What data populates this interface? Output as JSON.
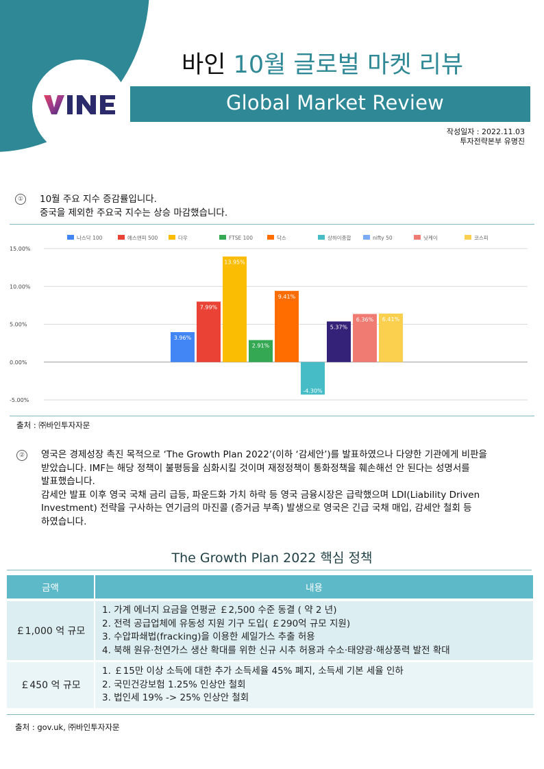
{
  "header": {
    "title_prefix": "바인",
    "title_accent": "10월 글로벌 마켓 리뷰",
    "subtitle": "Global Market Review",
    "logo_text": "VINE",
    "date_line": "작성일자 : 2022.11.03",
    "author_line": "투자전략본부  유명진"
  },
  "section1": {
    "marker": "①",
    "line1": "10월 주요 지수 증감률입니다.",
    "line2": "중국을 제외한 주요국 지수는 상승 마감했습니다.",
    "source": "출처 : ㈜바인투자자문"
  },
  "chart_data": {
    "type": "bar",
    "categories": [
      "나스닥 100",
      "에스앤피 500",
      "다우",
      "FTSE 100",
      "닥스",
      "상하이종합",
      "nifty 50",
      "닛케이",
      "코스피"
    ],
    "values": [
      3.96,
      7.99,
      13.95,
      2.91,
      9.41,
      -4.3,
      5.37,
      6.36,
      6.41
    ],
    "data_labels": [
      "3.96%",
      "7.99%",
      "13.95%",
      "2.91%",
      "9.41%",
      "-4.30%",
      "5.37%",
      "6.36%",
      "6.41%"
    ],
    "colors": [
      "#4285f4",
      "#ea4335",
      "#fbbc04",
      "#34a853",
      "#ff6d01",
      "#46bdc6",
      "#7baaf7",
      "#f07b72",
      "#fcd04f"
    ],
    "bar_fill_overrides": {
      "nifty 50": "#332277"
    },
    "yticks": [
      "15.00%",
      "10.00%",
      "5.00%",
      "0.00%",
      "-5.00%"
    ],
    "ylim": [
      -5,
      15
    ],
    "grid": true,
    "legend": "top"
  },
  "section2": {
    "marker": "②",
    "lines": [
      "영국은 경제성장 촉진 목적으로 ‘The Growth Plan 2022’(이하  ‘감세안’)를 발표하였으나 다양한 기관에게 비판을",
      "받았습니다. IMF는 해당 정책이 불평등을 심화시킬 것이며 재정정책이 통화정책을 훼손해선 안 된다는 성명서를",
      "발표했습니다.",
      "감세안 발표 이후 영국 국채 금리 급등, 파운드화 가치 하락 등 영국 금융시장은 급락했으며 LDI(Liability  Driven",
      "Investment)  전략을 구사하는 연기금의 마진콜 (증거금 부족) 발생으로 영국은 긴급 국채 매입, 감세안 철회 등",
      "하였습니다."
    ]
  },
  "policy_table": {
    "title": "The Growth  Plan 2022 핵심 정책",
    "headers": [
      "금액",
      "내용"
    ],
    "rows": [
      {
        "amount": "￡1,000 억 규모",
        "items": [
          "1. 가계 에너지 요금을 연평균  ￡2,500 수준 동결 ( 약 2 년)",
          "2. 전력 공급업체에 유동성 지원 기구 도입( ￡290억 규모 지원)",
          "3. 수압파쇄법(fracking)을 이용한 셰일가스 추출 허용",
          "4. 북해 원유·천연가스 생산 확대를 위한 신규 시추 허용과 수소·태양광·해상풍력 발전 확대"
        ]
      },
      {
        "amount": "￡450 억 규모",
        "items": [
          "1.  ￡15만 이상 소득에 대한 추가 소득세율 45% 폐지, 소득세 기본 세율 인하",
          "2. 국민건강보험 1.25% 인상안 철회",
          "3. 법인세 19% -> 25% 인상안 철회"
        ]
      }
    ],
    "source": "출처 : gov.uk,  ㈜바인투자자문"
  }
}
